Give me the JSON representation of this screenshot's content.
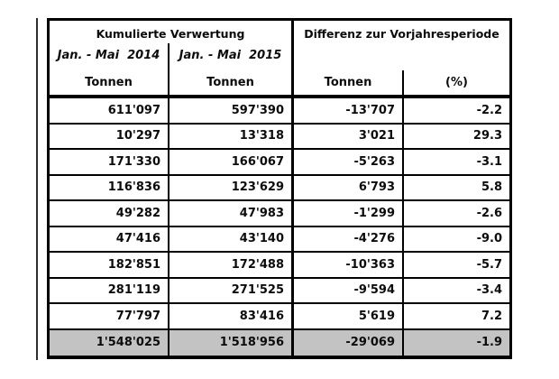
{
  "table": {
    "header": {
      "group_left": "Kumulierte Verwertung",
      "group_right": "Differenz zur Vorjahresperiode",
      "period_2014": "Jan. - Mai  2014",
      "period_2015": "Jan. - Mai  2015",
      "unit_tonnen_2014": "Tonnen",
      "unit_tonnen_2015": "Tonnen",
      "unit_tonnen_diff": "Tonnen",
      "unit_percent": "(%)"
    },
    "rows": [
      [
        "611'097",
        "597'390",
        "-13'707",
        "-2.2"
      ],
      [
        "10'297",
        "13'318",
        "3'021",
        "29.3"
      ],
      [
        "171'330",
        "166'067",
        "-5'263",
        "-3.1"
      ],
      [
        "116'836",
        "123'629",
        "6'793",
        "5.8"
      ],
      [
        "49'282",
        "47'983",
        "-1'299",
        "-2.6"
      ],
      [
        "47'416",
        "43'140",
        "-4'276",
        "-9.0"
      ],
      [
        "182'851",
        "172'488",
        "-10'363",
        "-5.7"
      ],
      [
        "281'119",
        "271'525",
        "-9'594",
        "-3.4"
      ],
      [
        "77'797",
        "83'416",
        "5'619",
        "7.2"
      ]
    ],
    "total": [
      "1'548'025",
      "1'518'956",
      "-29'069",
      "-1.9"
    ],
    "colors": {
      "border": "#000000",
      "text": "#0c0c0c",
      "total_row_bg": "#c3c3c3",
      "background": "#ffffff"
    }
  },
  "chart_data": {
    "type": "table",
    "title": "",
    "column_groups": [
      "Kumulierte Verwertung",
      "Differenz zur Vorjahresperiode"
    ],
    "columns": [
      "Jan. - Mai 2014 (Tonnen)",
      "Jan. - Mai 2015 (Tonnen)",
      "Differenz (Tonnen)",
      "Differenz (%)"
    ],
    "rows": [
      [
        611097,
        597390,
        -13707,
        -2.2
      ],
      [
        10297,
        13318,
        3021,
        29.3
      ],
      [
        171330,
        166067,
        -5263,
        -3.1
      ],
      [
        116836,
        123629,
        6793,
        5.8
      ],
      [
        49282,
        47983,
        -1299,
        -2.6
      ],
      [
        47416,
        43140,
        -4276,
        -9.0
      ],
      [
        182851,
        172488,
        -10363,
        -5.7
      ],
      [
        281119,
        271525,
        -9594,
        -3.4
      ],
      [
        77797,
        83416,
        5619,
        7.2
      ]
    ],
    "total_row": [
      1548025,
      1518956,
      -29069,
      -1.9
    ],
    "layout": {
      "total_row_highlighted": true,
      "number_alignment": "right",
      "thousands_separator": "'"
    }
  }
}
